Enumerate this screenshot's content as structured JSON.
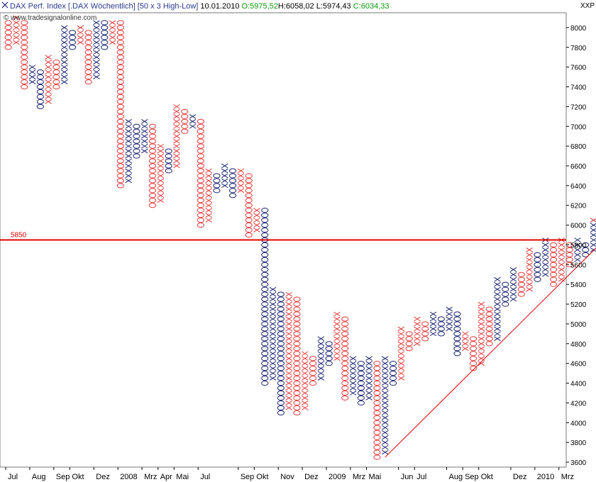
{
  "header": {
    "title": "DAX Perf. Index [.DAX  Wöchentlich]  [50 x 3 High-Low]",
    "date": "10.01.2010",
    "open": "O:5975,52",
    "high": "H:6058,02",
    "low": "L:5974,43",
    "close": "C:6034,33"
  },
  "source": "© www.tradesignalonline.com",
  "yaxis_label": "XXP",
  "chart_data": {
    "type": "point-and-figure",
    "box_size": 50,
    "reversal": 3,
    "ylim": [
      3550,
      8150
    ],
    "yticks": [
      3600,
      3800,
      4000,
      4200,
      4400,
      4600,
      4800,
      5000,
      5200,
      5400,
      5600,
      5800,
      6000,
      6200,
      6400,
      6600,
      6800,
      7000,
      7200,
      7400,
      7600,
      7800,
      8000
    ],
    "xticks": [
      {
        "label": "Jul",
        "col": 0
      },
      {
        "label": "Aug",
        "col": 3
      },
      {
        "label": "Sep",
        "col": 6
      },
      {
        "label": "Okt",
        "col": 8
      },
      {
        "label": "Dez",
        "col": 11
      },
      {
        "label": "2008",
        "col": 14
      },
      {
        "label": "Mrz",
        "col": 17
      },
      {
        "label": "Apr",
        "col": 19
      },
      {
        "label": "Mai",
        "col": 21
      },
      {
        "label": "Jul",
        "col": 24
      },
      {
        "label": "Sep",
        "col": 29
      },
      {
        "label": "Okt",
        "col": 31
      },
      {
        "label": "Nov",
        "col": 34
      },
      {
        "label": "Dez",
        "col": 37
      },
      {
        "label": "2009",
        "col": 40
      },
      {
        "label": "Mrz",
        "col": 43
      },
      {
        "label": "Mai",
        "col": 45
      },
      {
        "label": "Jun",
        "col": 49
      },
      {
        "label": "Jul",
        "col": 51
      },
      {
        "label": "Aug",
        "col": 55
      },
      {
        "label": "Sep",
        "col": 57
      },
      {
        "label": "Okt",
        "col": 59
      },
      {
        "label": "Dez",
        "col": 63
      },
      {
        "label": "2010",
        "col": 66
      },
      {
        "label": "Mrz",
        "col": 69
      }
    ],
    "columns": [
      {
        "type": "O",
        "high": 8050,
        "low": 7800,
        "color": "red"
      },
      {
        "type": "X",
        "high": 8100,
        "low": 7850,
        "color": "red"
      },
      {
        "type": "O",
        "high": 8050,
        "low": 7400,
        "color": "red"
      },
      {
        "type": "X",
        "high": 7600,
        "low": 7450,
        "color": "navy"
      },
      {
        "type": "O",
        "high": 7550,
        "low": 7200,
        "color": "navy"
      },
      {
        "type": "X",
        "high": 7700,
        "low": 7250,
        "color": "red"
      },
      {
        "type": "O",
        "high": 7650,
        "low": 7400,
        "color": "red"
      },
      {
        "type": "X",
        "high": 8000,
        "low": 7450,
        "color": "navy"
      },
      {
        "type": "O",
        "high": 7950,
        "low": 7800,
        "color": "navy"
      },
      {
        "type": "X",
        "high": 8000,
        "low": 7850,
        "color": "red"
      },
      {
        "type": "O",
        "high": 7950,
        "low": 7450,
        "color": "red"
      },
      {
        "type": "X",
        "high": 8050,
        "low": 7500,
        "color": "navy"
      },
      {
        "type": "O",
        "high": 8050,
        "low": 7800,
        "color": "navy"
      },
      {
        "type": "X",
        "high": 8050,
        "low": 7850,
        "color": "red"
      },
      {
        "type": "O",
        "high": 8050,
        "low": 6400,
        "color": "red"
      },
      {
        "type": "X",
        "high": 7050,
        "low": 6450,
        "color": "navy"
      },
      {
        "type": "O",
        "high": 7000,
        "low": 6700,
        "color": "navy"
      },
      {
        "type": "X",
        "high": 7050,
        "low": 6750,
        "color": "navy"
      },
      {
        "type": "O",
        "high": 7000,
        "low": 6200,
        "color": "red"
      },
      {
        "type": "X",
        "high": 6800,
        "low": 6250,
        "color": "red"
      },
      {
        "type": "O",
        "high": 6750,
        "low": 6550,
        "color": "navy"
      },
      {
        "type": "X",
        "high": 7200,
        "low": 6600,
        "color": "red"
      },
      {
        "type": "O",
        "high": 7150,
        "low": 6950,
        "color": "red"
      },
      {
        "type": "X",
        "high": 7100,
        "low": 7000,
        "color": "navy"
      },
      {
        "type": "O",
        "high": 7050,
        "low": 6000,
        "color": "red"
      },
      {
        "type": "X",
        "high": 6550,
        "low": 6050,
        "color": "red"
      },
      {
        "type": "O",
        "high": 6500,
        "low": 6350,
        "color": "navy"
      },
      {
        "type": "X",
        "high": 6600,
        "low": 6400,
        "color": "navy"
      },
      {
        "type": "O",
        "high": 6550,
        "low": 6300,
        "color": "navy"
      },
      {
        "type": "X",
        "high": 6550,
        "low": 6350,
        "color": "red"
      },
      {
        "type": "O",
        "high": 6500,
        "low": 5900,
        "color": "red"
      },
      {
        "type": "X",
        "high": 6150,
        "low": 5950,
        "color": "red"
      },
      {
        "type": "O",
        "high": 6150,
        "low": 4400,
        "color": "navy"
      },
      {
        "type": "X",
        "high": 5350,
        "low": 4450,
        "color": "navy"
      },
      {
        "type": "O",
        "high": 5300,
        "low": 4100,
        "color": "navy"
      },
      {
        "type": "X",
        "high": 5300,
        "low": 4150,
        "color": "red"
      },
      {
        "type": "O",
        "high": 5250,
        "low": 4100,
        "color": "red"
      },
      {
        "type": "X",
        "high": 4700,
        "low": 4150,
        "color": "red"
      },
      {
        "type": "O",
        "high": 4650,
        "low": 4400,
        "color": "red"
      },
      {
        "type": "X",
        "high": 4850,
        "low": 4450,
        "color": "navy"
      },
      {
        "type": "O",
        "high": 4800,
        "low": 4600,
        "color": "navy"
      },
      {
        "type": "X",
        "high": 5100,
        "low": 4650,
        "color": "red"
      },
      {
        "type": "O",
        "high": 5050,
        "low": 4250,
        "color": "red"
      },
      {
        "type": "X",
        "high": 4650,
        "low": 4300,
        "color": "navy"
      },
      {
        "type": "O",
        "high": 4600,
        "low": 4200,
        "color": "navy"
      },
      {
        "type": "X",
        "high": 4650,
        "low": 4250,
        "color": "navy"
      },
      {
        "type": "O",
        "high": 4600,
        "low": 3650,
        "color": "red"
      },
      {
        "type": "X",
        "high": 4650,
        "low": 3700,
        "color": "navy"
      },
      {
        "type": "O",
        "high": 4600,
        "low": 4400,
        "color": "navy"
      },
      {
        "type": "X",
        "high": 4950,
        "low": 4450,
        "color": "red"
      },
      {
        "type": "O",
        "high": 4900,
        "low": 4750,
        "color": "red"
      },
      {
        "type": "X",
        "high": 5050,
        "low": 4800,
        "color": "red"
      },
      {
        "type": "O",
        "high": 5000,
        "low": 4850,
        "color": "red"
      },
      {
        "type": "X",
        "high": 5100,
        "low": 4900,
        "color": "navy"
      },
      {
        "type": "O",
        "high": 5050,
        "low": 4900,
        "color": "navy"
      },
      {
        "type": "X",
        "high": 5150,
        "low": 4950,
        "color": "navy"
      },
      {
        "type": "O",
        "high": 5100,
        "low": 4700,
        "color": "navy"
      },
      {
        "type": "X",
        "high": 4900,
        "low": 4750,
        "color": "red"
      },
      {
        "type": "O",
        "high": 4850,
        "low": 4550,
        "color": "red"
      },
      {
        "type": "X",
        "high": 5200,
        "low": 4600,
        "color": "red"
      },
      {
        "type": "O",
        "high": 5150,
        "low": 4800,
        "color": "red"
      },
      {
        "type": "X",
        "high": 5450,
        "low": 4850,
        "color": "navy"
      },
      {
        "type": "O",
        "high": 5400,
        "low": 5200,
        "color": "navy"
      },
      {
        "type": "X",
        "high": 5550,
        "low": 5250,
        "color": "navy"
      },
      {
        "type": "O",
        "high": 5500,
        "low": 5300,
        "color": "red"
      },
      {
        "type": "X",
        "high": 5750,
        "low": 5350,
        "color": "red"
      },
      {
        "type": "O",
        "high": 5700,
        "low": 5450,
        "color": "navy"
      },
      {
        "type": "X",
        "high": 5850,
        "low": 5500,
        "color": "navy"
      },
      {
        "type": "O",
        "high": 5800,
        "low": 5400,
        "color": "red"
      },
      {
        "type": "X",
        "high": 5850,
        "low": 5450,
        "color": "red"
      },
      {
        "type": "O",
        "high": 5800,
        "low": 5600,
        "color": "red"
      },
      {
        "type": "X",
        "high": 5850,
        "low": 5650,
        "color": "navy"
      },
      {
        "type": "O",
        "high": 5800,
        "low": 5700,
        "color": "navy"
      },
      {
        "type": "X",
        "high": 6050,
        "low": 5750,
        "color": "navy"
      }
    ],
    "red_topmost_box_of_last_column": 6050,
    "horizontal_line": {
      "value": 5850,
      "label": "5850",
      "color": "#e00000"
    },
    "trendline": {
      "from_col": 47,
      "from_value": 3650,
      "to_col": 73,
      "to_value": 5800,
      "color": "#e00000"
    },
    "colors": {
      "red": "#e23b3b",
      "navy": "#1a2470",
      "grid": "#d8d8d8",
      "axis": "#000000"
    }
  }
}
